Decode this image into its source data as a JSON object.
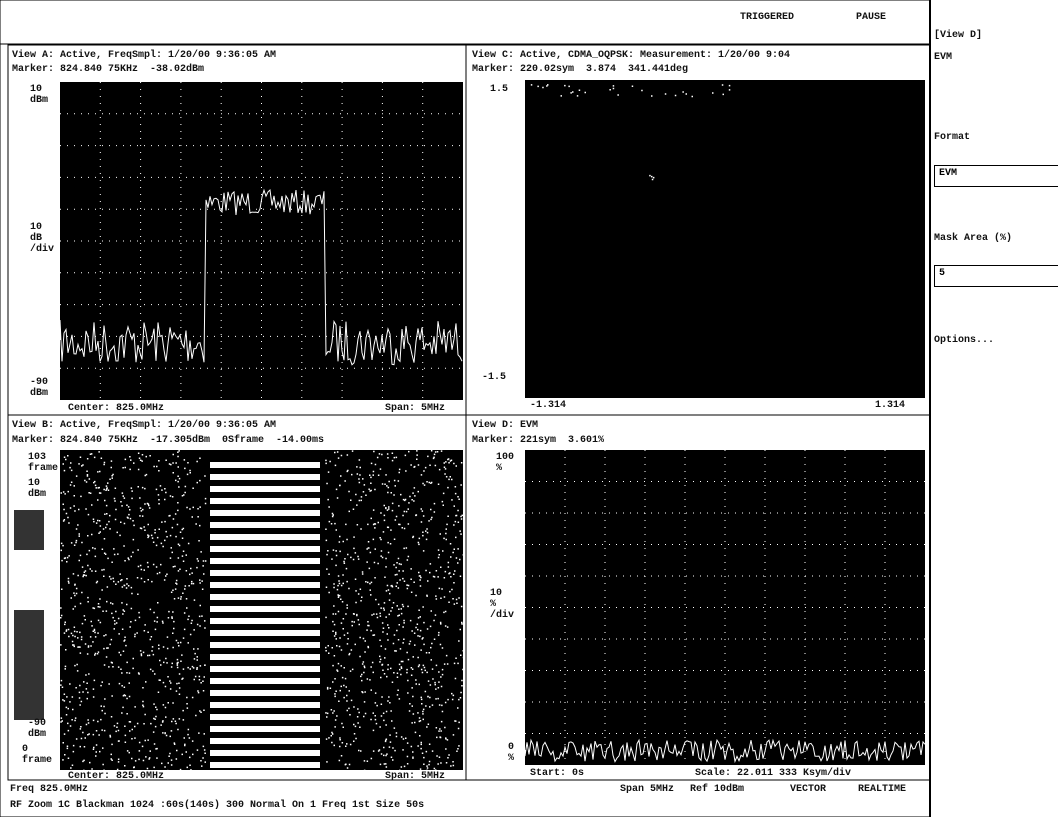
{
  "toolbar": {
    "status": "TRIGGERED",
    "pause": "PAUSE"
  },
  "side_panel": {
    "view": "[View D]",
    "measurement": "EVM",
    "format_label": "Format",
    "format_value": "EVM",
    "mask_label": "Mask Area (%)",
    "mask_value": "5",
    "options": "Options..."
  },
  "views": [
    {
      "title": "View A: Active, FreqSmpl: 1/20/00 9:36:05 AM",
      "marker": "Marker: 824.840 75KHz  -38.02dBm",
      "y_labels": [
        "10\ndBm",
        "10\ndB\n/div",
        "-90\ndBm"
      ],
      "footer": [
        "Center: 825.0MHz",
        "Span: 5MHz"
      ]
    },
    {
      "title": "View C: Active, CDMA_OQPSK: Measurement: 1/20/00 9:04",
      "marker": "Marker: 220.02sym  3.874  341.441deg",
      "y_labels": [
        "1.5",
        "-1.5"
      ],
      "footer": [
        "-1.314",
        "1.314"
      ]
    },
    {
      "title": "View B: Active, FreqSmpl: 1/20/00 9:36:05 AM",
      "marker": "Marker: 824.840 75KHz  -17.305dBm  0Sframe  -14.00ms",
      "y_labels": [
        "103\nframe",
        "10\ndBm",
        "-90\ndBm",
        "0\nframe"
      ],
      "footer": [
        "Center: 825.0MHz",
        "Span: 5MHz"
      ]
    },
    {
      "title": "View D: EVM",
      "marker": "Marker: 221sym  3.601%",
      "y_labels": [
        "100\n%",
        "10\n%\n/div",
        "0\n%"
      ],
      "footer": [
        "Start: 0s",
        "Scale: 22.011 333 Ksym/div"
      ]
    }
  ],
  "status_bar": {
    "freq": "Freq 825.0MHz",
    "span": "Span 5MHz",
    "ref": "Ref 10dBm",
    "mode": "VECTOR",
    "realtime": "REALTIME",
    "line2": "RF Zoom 1C Blackman 1024 :60s(140s) 300 Normal On 1 Freq 1st Size 50s"
  }
}
